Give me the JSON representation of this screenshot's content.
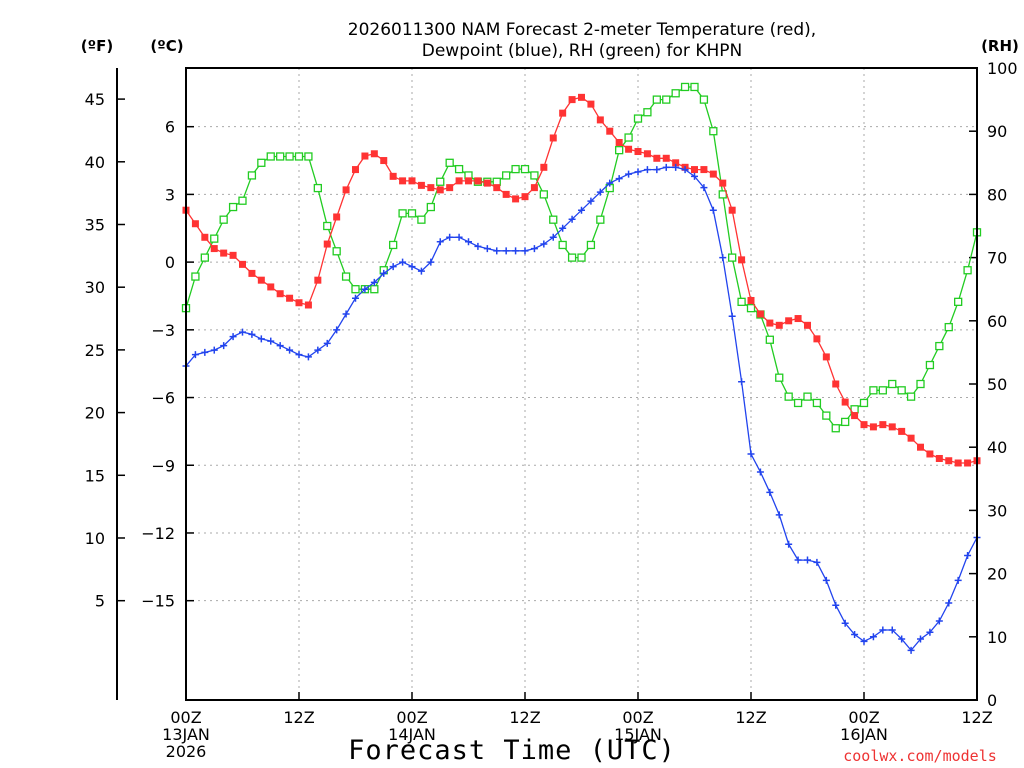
{
  "chart_data": {
    "type": "line",
    "title_lines": [
      "2026011300 NAM Forecast 2-meter Temperature (red),",
      "Dewpoint (blue), RH (green) for KHPN"
    ],
    "xlabel": "Forecast Time (UTC)",
    "credit": "coolwx.com/models",
    "unit_labels": {
      "fahrenheit": "(ºF)",
      "celsius": "(ºC)",
      "rh": "(RH)"
    },
    "x_range_hours": [
      0,
      84
    ],
    "x_ticks": [
      {
        "hour": 0,
        "label": "00Z",
        "sub": [
          "13JAN",
          "2026"
        ]
      },
      {
        "hour": 12,
        "label": "12Z",
        "sub": []
      },
      {
        "hour": 24,
        "label": "00Z",
        "sub": [
          "14JAN"
        ]
      },
      {
        "hour": 36,
        "label": "12Z",
        "sub": []
      },
      {
        "hour": 48,
        "label": "00Z",
        "sub": [
          "15JAN"
        ]
      },
      {
        "hour": 60,
        "label": "12Z",
        "sub": []
      },
      {
        "hour": 72,
        "label": "00Z",
        "sub": [
          "16JAN"
        ]
      },
      {
        "hour": 84,
        "label": "12Z",
        "sub": []
      }
    ],
    "celsius_range": [
      -19.4,
      8.6
    ],
    "celsius_ticks": [
      6,
      3,
      0,
      -3,
      -6,
      -9,
      -12,
      -15
    ],
    "celsius_tick_labels": [
      "6",
      "3",
      "0",
      "−3",
      "−6",
      "−9",
      "−12",
      "−15"
    ],
    "fahrenheit_ticks": [
      45,
      40,
      35,
      30,
      25,
      20,
      15,
      10,
      5
    ],
    "rh_range": [
      0,
      100
    ],
    "rh_ticks": [
      100,
      90,
      80,
      70,
      60,
      50,
      40,
      30,
      20,
      10,
      0
    ],
    "colors": {
      "temperature": "#ff3333",
      "dewpoint": "#2244ee",
      "rh": "#22cc22",
      "grid": "#aaaaaa"
    },
    "series": [
      {
        "name": "Temperature",
        "unit": "C",
        "marker": "filled-square",
        "points": [
          [
            0,
            2.3
          ],
          [
            1,
            1.7
          ],
          [
            2,
            1.1
          ],
          [
            3,
            0.6
          ],
          [
            4,
            0.4
          ],
          [
            5,
            0.3
          ],
          [
            6,
            -0.1
          ],
          [
            7,
            -0.5
          ],
          [
            8,
            -0.8
          ],
          [
            9,
            -1.1
          ],
          [
            10,
            -1.4
          ],
          [
            11,
            -1.6
          ],
          [
            12,
            -1.8
          ],
          [
            13,
            -1.9
          ],
          [
            14,
            -0.8
          ],
          [
            15,
            0.8
          ],
          [
            16,
            2.0
          ],
          [
            17,
            3.2
          ],
          [
            18,
            4.1
          ],
          [
            19,
            4.7
          ],
          [
            20,
            4.8
          ],
          [
            21,
            4.5
          ],
          [
            22,
            3.8
          ],
          [
            23,
            3.6
          ],
          [
            24,
            3.6
          ],
          [
            25,
            3.4
          ],
          [
            26,
            3.3
          ],
          [
            27,
            3.2
          ],
          [
            28,
            3.3
          ],
          [
            29,
            3.6
          ],
          [
            30,
            3.6
          ],
          [
            31,
            3.6
          ],
          [
            32,
            3.5
          ],
          [
            33,
            3.3
          ],
          [
            34,
            3.0
          ],
          [
            35,
            2.8
          ],
          [
            36,
            2.9
          ],
          [
            37,
            3.3
          ],
          [
            38,
            4.2
          ],
          [
            39,
            5.5
          ],
          [
            40,
            6.6
          ],
          [
            41,
            7.2
          ],
          [
            42,
            7.3
          ],
          [
            43,
            7.0
          ],
          [
            44,
            6.3
          ],
          [
            45,
            5.8
          ],
          [
            46,
            5.3
          ],
          [
            47,
            5.0
          ],
          [
            48,
            4.9
          ],
          [
            49,
            4.8
          ],
          [
            50,
            4.6
          ],
          [
            51,
            4.6
          ],
          [
            52,
            4.4
          ],
          [
            53,
            4.2
          ],
          [
            54,
            4.1
          ],
          [
            55,
            4.1
          ],
          [
            56,
            3.9
          ],
          [
            57,
            3.5
          ],
          [
            58,
            2.3
          ],
          [
            59,
            0.1
          ],
          [
            60,
            -1.7
          ],
          [
            61,
            -2.3
          ],
          [
            62,
            -2.7
          ],
          [
            63,
            -2.8
          ],
          [
            64,
            -2.6
          ],
          [
            65,
            -2.5
          ],
          [
            66,
            -2.8
          ],
          [
            67,
            -3.4
          ],
          [
            68,
            -4.2
          ],
          [
            69,
            -5.4
          ],
          [
            70,
            -6.2
          ],
          [
            71,
            -6.8
          ],
          [
            72,
            -7.2
          ],
          [
            73,
            -7.3
          ],
          [
            74,
            -7.2
          ],
          [
            75,
            -7.3
          ],
          [
            76,
            -7.5
          ],
          [
            77,
            -7.8
          ],
          [
            78,
            -8.2
          ],
          [
            79,
            -8.5
          ],
          [
            80,
            -8.7
          ],
          [
            81,
            -8.8
          ],
          [
            82,
            -8.9
          ],
          [
            83,
            -8.9
          ],
          [
            84,
            -8.8
          ]
        ]
      },
      {
        "name": "Dewpoint",
        "unit": "C",
        "marker": "plus",
        "points": [
          [
            0,
            -4.6
          ],
          [
            1,
            -4.1
          ],
          [
            2,
            -4.0
          ],
          [
            3,
            -3.9
          ],
          [
            4,
            -3.7
          ],
          [
            5,
            -3.3
          ],
          [
            6,
            -3.1
          ],
          [
            7,
            -3.2
          ],
          [
            8,
            -3.4
          ],
          [
            9,
            -3.5
          ],
          [
            10,
            -3.7
          ],
          [
            11,
            -3.9
          ],
          [
            12,
            -4.1
          ],
          [
            13,
            -4.2
          ],
          [
            14,
            -3.9
          ],
          [
            15,
            -3.6
          ],
          [
            16,
            -3.0
          ],
          [
            17,
            -2.3
          ],
          [
            18,
            -1.6
          ],
          [
            19,
            -1.2
          ],
          [
            20,
            -0.9
          ],
          [
            21,
            -0.5
          ],
          [
            22,
            -0.2
          ],
          [
            23,
            0.0
          ],
          [
            24,
            -0.2
          ],
          [
            25,
            -0.4
          ],
          [
            26,
            0.0
          ],
          [
            27,
            0.9
          ],
          [
            28,
            1.1
          ],
          [
            29,
            1.1
          ],
          [
            30,
            0.9
          ],
          [
            31,
            0.7
          ],
          [
            32,
            0.6
          ],
          [
            33,
            0.5
          ],
          [
            34,
            0.5
          ],
          [
            35,
            0.5
          ],
          [
            36,
            0.5
          ],
          [
            37,
            0.6
          ],
          [
            38,
            0.8
          ],
          [
            39,
            1.1
          ],
          [
            40,
            1.5
          ],
          [
            41,
            1.9
          ],
          [
            42,
            2.3
          ],
          [
            43,
            2.7
          ],
          [
            44,
            3.1
          ],
          [
            45,
            3.5
          ],
          [
            46,
            3.7
          ],
          [
            47,
            3.9
          ],
          [
            48,
            4.0
          ],
          [
            49,
            4.1
          ],
          [
            50,
            4.1
          ],
          [
            51,
            4.2
          ],
          [
            52,
            4.2
          ],
          [
            53,
            4.1
          ],
          [
            54,
            3.8
          ],
          [
            55,
            3.3
          ],
          [
            56,
            2.3
          ],
          [
            57,
            0.2
          ],
          [
            58,
            -2.4
          ],
          [
            59,
            -5.3
          ],
          [
            60,
            -8.5
          ],
          [
            61,
            -9.3
          ],
          [
            62,
            -10.2
          ],
          [
            63,
            -11.2
          ],
          [
            64,
            -12.5
          ],
          [
            65,
            -13.2
          ],
          [
            66,
            -13.2
          ],
          [
            67,
            -13.3
          ],
          [
            68,
            -14.1
          ],
          [
            69,
            -15.2
          ],
          [
            70,
            -16.0
          ],
          [
            71,
            -16.5
          ],
          [
            72,
            -16.8
          ],
          [
            73,
            -16.6
          ],
          [
            74,
            -16.3
          ],
          [
            75,
            -16.3
          ],
          [
            76,
            -16.7
          ],
          [
            77,
            -17.2
          ],
          [
            78,
            -16.7
          ],
          [
            79,
            -16.4
          ],
          [
            80,
            -15.9
          ],
          [
            81,
            -15.1
          ],
          [
            82,
            -14.1
          ],
          [
            83,
            -13.0
          ],
          [
            84,
            -12.2
          ]
        ]
      },
      {
        "name": "RH",
        "unit": "%",
        "marker": "open-square",
        "points": [
          [
            0,
            62
          ],
          [
            1,
            67
          ],
          [
            2,
            70
          ],
          [
            3,
            73
          ],
          [
            4,
            76
          ],
          [
            5,
            78
          ],
          [
            6,
            79
          ],
          [
            7,
            83
          ],
          [
            8,
            85
          ],
          [
            9,
            86
          ],
          [
            10,
            86
          ],
          [
            11,
            86
          ],
          [
            12,
            86
          ],
          [
            13,
            86
          ],
          [
            14,
            81
          ],
          [
            15,
            75
          ],
          [
            16,
            71
          ],
          [
            17,
            67
          ],
          [
            18,
            65
          ],
          [
            19,
            65
          ],
          [
            20,
            65
          ],
          [
            21,
            68
          ],
          [
            22,
            72
          ],
          [
            23,
            77
          ],
          [
            24,
            77
          ],
          [
            25,
            76
          ],
          [
            26,
            78
          ],
          [
            27,
            82
          ],
          [
            28,
            85
          ],
          [
            29,
            84
          ],
          [
            30,
            83
          ],
          [
            31,
            82
          ],
          [
            32,
            82
          ],
          [
            33,
            82
          ],
          [
            34,
            83
          ],
          [
            35,
            84
          ],
          [
            36,
            84
          ],
          [
            37,
            83
          ],
          [
            38,
            80
          ],
          [
            39,
            76
          ],
          [
            40,
            72
          ],
          [
            41,
            70
          ],
          [
            42,
            70
          ],
          [
            43,
            72
          ],
          [
            44,
            76
          ],
          [
            45,
            81
          ],
          [
            46,
            87
          ],
          [
            47,
            89
          ],
          [
            48,
            92
          ],
          [
            49,
            93
          ],
          [
            50,
            95
          ],
          [
            51,
            95
          ],
          [
            52,
            96
          ],
          [
            53,
            97
          ],
          [
            54,
            97
          ],
          [
            55,
            95
          ],
          [
            56,
            90
          ],
          [
            57,
            80
          ],
          [
            58,
            70
          ],
          [
            59,
            63
          ],
          [
            60,
            62
          ],
          [
            61,
            61
          ],
          [
            62,
            57
          ],
          [
            63,
            51
          ],
          [
            64,
            48
          ],
          [
            65,
            47
          ],
          [
            66,
            48
          ],
          [
            67,
            47
          ],
          [
            68,
            45
          ],
          [
            69,
            43
          ],
          [
            70,
            44
          ],
          [
            71,
            46
          ],
          [
            72,
            47
          ],
          [
            73,
            49
          ],
          [
            74,
            49
          ],
          [
            75,
            50
          ],
          [
            76,
            49
          ],
          [
            77,
            48
          ],
          [
            78,
            50
          ],
          [
            79,
            53
          ],
          [
            80,
            56
          ],
          [
            81,
            59
          ],
          [
            82,
            63
          ],
          [
            83,
            68
          ],
          [
            84,
            74
          ]
        ]
      }
    ]
  }
}
